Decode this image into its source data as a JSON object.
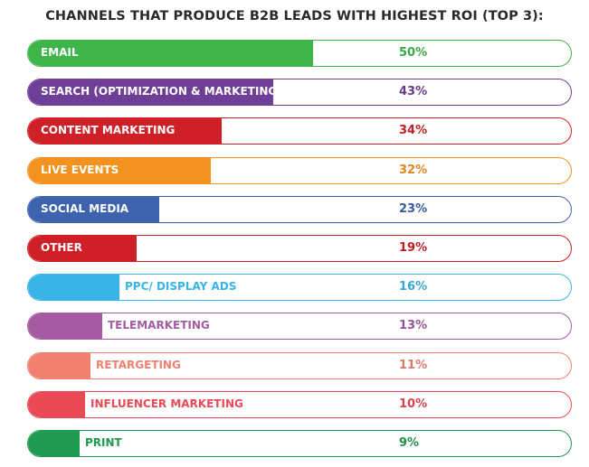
{
  "chart_data": {
    "type": "bar",
    "orientation": "horizontal",
    "title": "CHANNELS THAT PRODUCE B2B LEADS WITH HIGHEST ROI (TOP 3):",
    "xlabel": "",
    "ylabel": "",
    "xlim": [
      0,
      100
    ],
    "grid": false,
    "categories": [
      "EMAIL",
      "SEARCH (OPTIMIZATION & MARKETING)",
      "CONTENT MARKETING",
      "LIVE EVENTS",
      "SOCIAL MEDIA",
      "OTHER",
      "PPC/ DISPLAY ADS",
      "TELEMARKETING",
      "RETARGETING",
      "INFLUENCER MARKETING",
      "PRINT"
    ],
    "values": [
      50,
      43,
      34,
      32,
      23,
      19,
      16,
      13,
      11,
      10,
      9
    ],
    "value_labels": [
      "50%",
      "43%",
      "34%",
      "32%",
      "23%",
      "19%",
      "16%",
      "13%",
      "11%",
      "10%",
      "9%"
    ],
    "colors": [
      "#3fb549",
      "#6f3f98",
      "#cf2027",
      "#f4921f",
      "#3d63ae",
      "#cf2027",
      "#3ab4e6",
      "#a45ba2",
      "#f08170",
      "#e94a55",
      "#1f9a50"
    ],
    "label_inside": [
      true,
      true,
      true,
      true,
      true,
      true,
      false,
      false,
      false,
      false,
      false
    ]
  }
}
